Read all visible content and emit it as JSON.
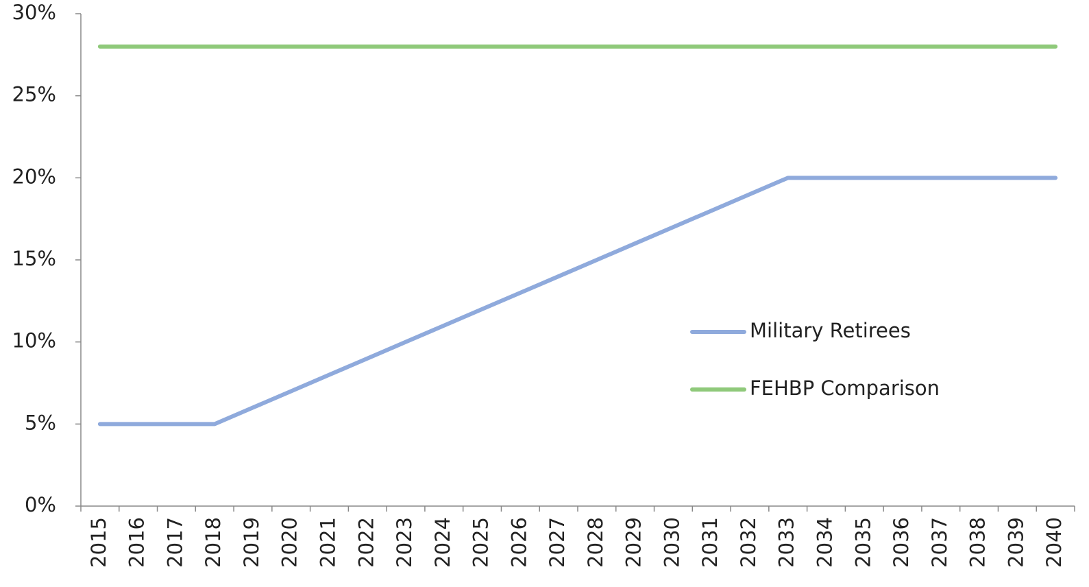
{
  "chart_data": {
    "type": "line",
    "categories": [
      "2015",
      "2016",
      "2017",
      "2018",
      "2019",
      "2020",
      "2021",
      "2022",
      "2023",
      "2024",
      "2025",
      "2026",
      "2027",
      "2028",
      "2029",
      "2030",
      "2031",
      "2032",
      "2033",
      "2034",
      "2035",
      "2036",
      "2037",
      "2038",
      "2039",
      "2040"
    ],
    "series": [
      {
        "name": "Military Retirees",
        "color": "#8faadc",
        "values": [
          5,
          5,
          5,
          5,
          6,
          7,
          8,
          9,
          10,
          11,
          12,
          13,
          14,
          15,
          16,
          17,
          18,
          19,
          20,
          20,
          20,
          20,
          20,
          20,
          20,
          20
        ]
      },
      {
        "name": "FEHBP Comparison",
        "color": "#8fc97a",
        "values": [
          28,
          28,
          28,
          28,
          28,
          28,
          28,
          28,
          28,
          28,
          28,
          28,
          28,
          28,
          28,
          28,
          28,
          28,
          28,
          28,
          28,
          28,
          28,
          28,
          28,
          28
        ]
      }
    ],
    "ylim": [
      0,
      30
    ],
    "yticks": [
      {
        "value": 0,
        "label": "0%"
      },
      {
        "value": 5,
        "label": "5%"
      },
      {
        "value": 10,
        "label": "10%"
      },
      {
        "value": 15,
        "label": "15%"
      },
      {
        "value": 20,
        "label": "20%"
      },
      {
        "value": 25,
        "label": "25%"
      },
      {
        "value": 30,
        "label": "30%"
      }
    ],
    "grid": false
  }
}
